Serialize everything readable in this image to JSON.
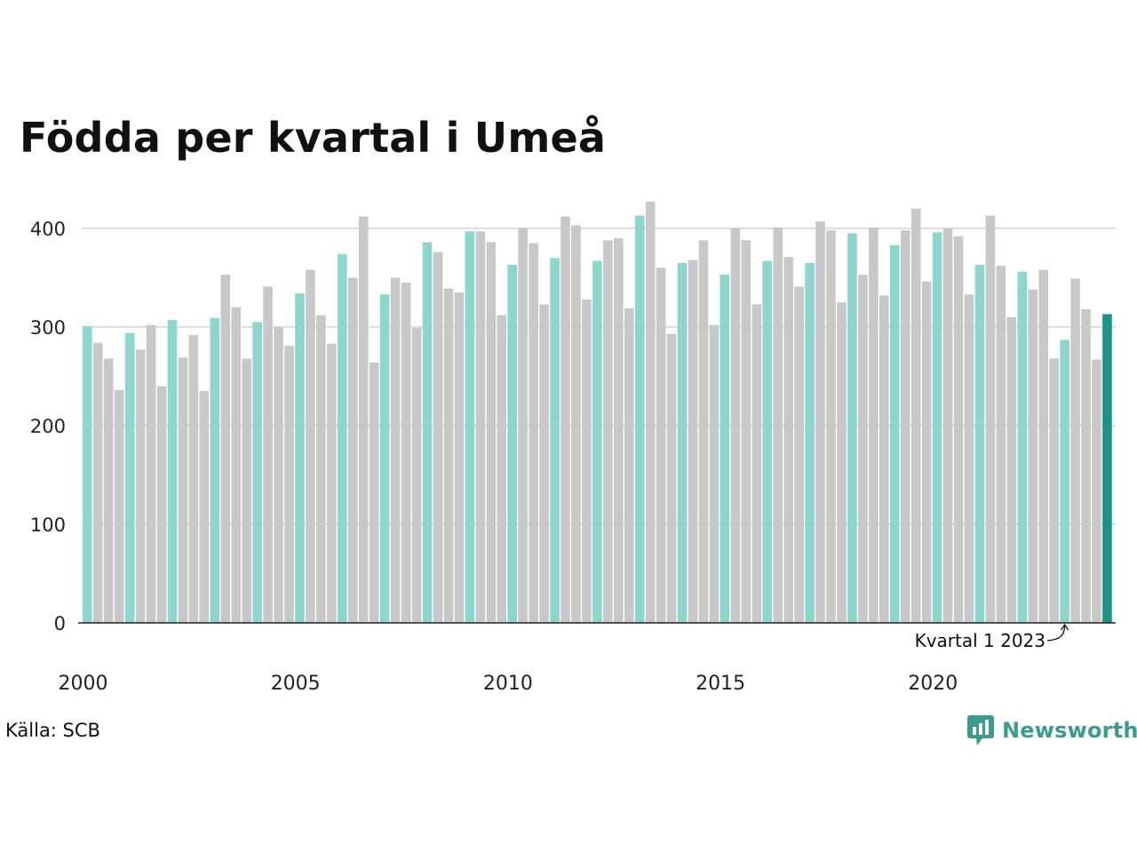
{
  "title": "Födda per kvartal i Umeå",
  "source": "Källa: SCB",
  "logo": {
    "name": "Newsworthy",
    "icon": "newsworthy-logo-icon",
    "color": "#3a9b8e"
  },
  "colors": {
    "q1": "#8dd6cd",
    "other": "#c8c8c8",
    "highlight": "#1a9485",
    "grid": "#dedede",
    "axis": "#222222"
  },
  "chart_data": {
    "type": "bar",
    "title": "Födda per kvartal i Umeå",
    "xlabel": "",
    "ylabel": "",
    "ylim": [
      0,
      440
    ],
    "yticks": [
      0,
      100,
      200,
      300,
      400
    ],
    "xticks": [
      "2000",
      "2005",
      "2010",
      "2015",
      "2020"
    ],
    "grid": true,
    "start_year": 2000,
    "values": [
      301,
      284,
      268,
      236,
      294,
      277,
      302,
      240,
      307,
      269,
      292,
      235,
      309,
      353,
      320,
      268,
      305,
      341,
      300,
      281,
      334,
      358,
      312,
      283,
      374,
      350,
      412,
      264,
      333,
      350,
      345,
      299,
      386,
      376,
      339,
      335,
      397,
      397,
      386,
      312,
      363,
      400,
      385,
      323,
      370,
      412,
      403,
      328,
      367,
      388,
      390,
      319,
      413,
      427,
      360,
      293,
      365,
      368,
      388,
      302,
      353,
      400,
      388,
      323,
      367,
      401,
      371,
      341,
      365,
      407,
      398,
      325,
      395,
      353,
      401,
      332,
      383,
      398,
      420,
      346,
      396,
      400,
      392,
      333,
      363,
      413,
      362,
      310,
      356,
      338,
      358,
      268,
      287,
      349,
      318,
      267,
      313
    ],
    "annotation": {
      "label": "Kvartal 1 2023",
      "target_year": 2023,
      "target_quarter": 1
    }
  }
}
